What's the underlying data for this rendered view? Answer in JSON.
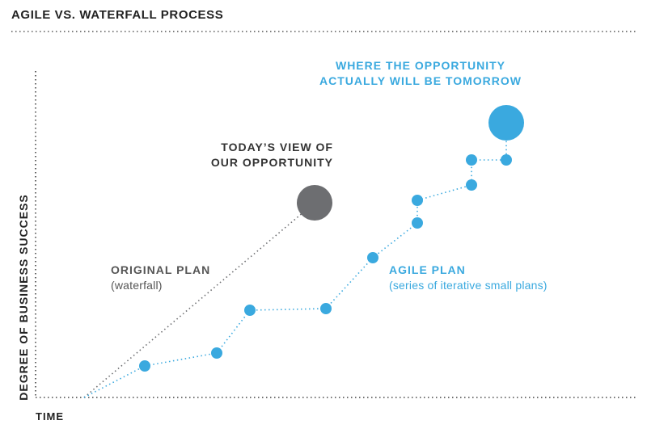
{
  "title": "AGILE VS. WATERFALL PROCESS",
  "axes": {
    "y_label": "DEGREE OF BUSINESS SUCCESS",
    "x_label": "TIME"
  },
  "annotations": {
    "future_opportunity": [
      "WHERE THE OPPORTUNITY",
      "ACTUALLY WILL BE TOMORROW"
    ],
    "today_view": [
      "TODAY’S VIEW OF",
      "OUR OPPORTUNITY"
    ],
    "original_plan": {
      "title": "ORIGINAL PLAN",
      "subtitle": "(waterfall)"
    },
    "agile_plan": {
      "title": "AGILE PLAN",
      "subtitle": "(series of iterative small plans)"
    }
  },
  "colors": {
    "agile": "#3aa9df",
    "waterfall": "#6d6e71",
    "axis": "#444444"
  }
}
